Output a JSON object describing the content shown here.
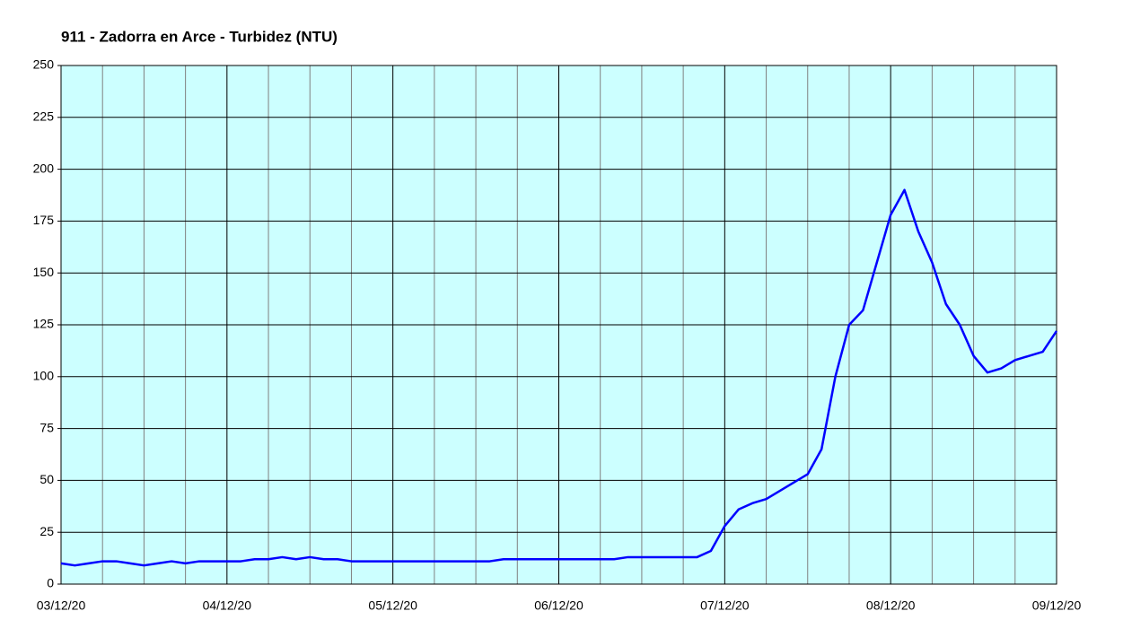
{
  "chart_data": {
    "type": "line",
    "title": "911 - Zadorra en Arce - Turbidez (NTU)",
    "categories": [
      "03/12/20",
      null,
      null,
      null,
      null,
      null,
      null,
      null,
      null,
      null,
      null,
      null,
      "04/12/20",
      null,
      null,
      null,
      null,
      null,
      null,
      null,
      null,
      null,
      null,
      null,
      "05/12/20",
      null,
      null,
      null,
      null,
      null,
      null,
      null,
      null,
      null,
      null,
      null,
      "06/12/20",
      null,
      null,
      null,
      null,
      null,
      null,
      null,
      null,
      null,
      null,
      null,
      "07/12/20",
      null,
      null,
      null,
      null,
      null,
      null,
      null,
      null,
      null,
      null,
      null,
      "08/12/20",
      null,
      null,
      null,
      null,
      null,
      null,
      null,
      null,
      null,
      null,
      null,
      "09/12/20"
    ],
    "series": [
      {
        "name": "Turbidez",
        "color": "#0000ff",
        "values": [
          10,
          9,
          10,
          11,
          11,
          10,
          9,
          10,
          11,
          10,
          11,
          11,
          11,
          11,
          12,
          12,
          13,
          12,
          13,
          12,
          12,
          11,
          11,
          11,
          11,
          11,
          11,
          11,
          11,
          11,
          11,
          11,
          12,
          12,
          12,
          12,
          12,
          12,
          12,
          12,
          12,
          13,
          13,
          13,
          13,
          13,
          13,
          16,
          28,
          36,
          39,
          41,
          45,
          49,
          53,
          65,
          100,
          125,
          132,
          155,
          178,
          190,
          170,
          155,
          135,
          125,
          110,
          102,
          104,
          108,
          110,
          112,
          122
        ]
      }
    ],
    "ylim": [
      0,
      250
    ],
    "yticks": [
      0,
      25,
      50,
      75,
      100,
      125,
      150,
      175,
      200,
      225,
      250
    ],
    "grid": true,
    "plot_background": "#ccffff"
  }
}
